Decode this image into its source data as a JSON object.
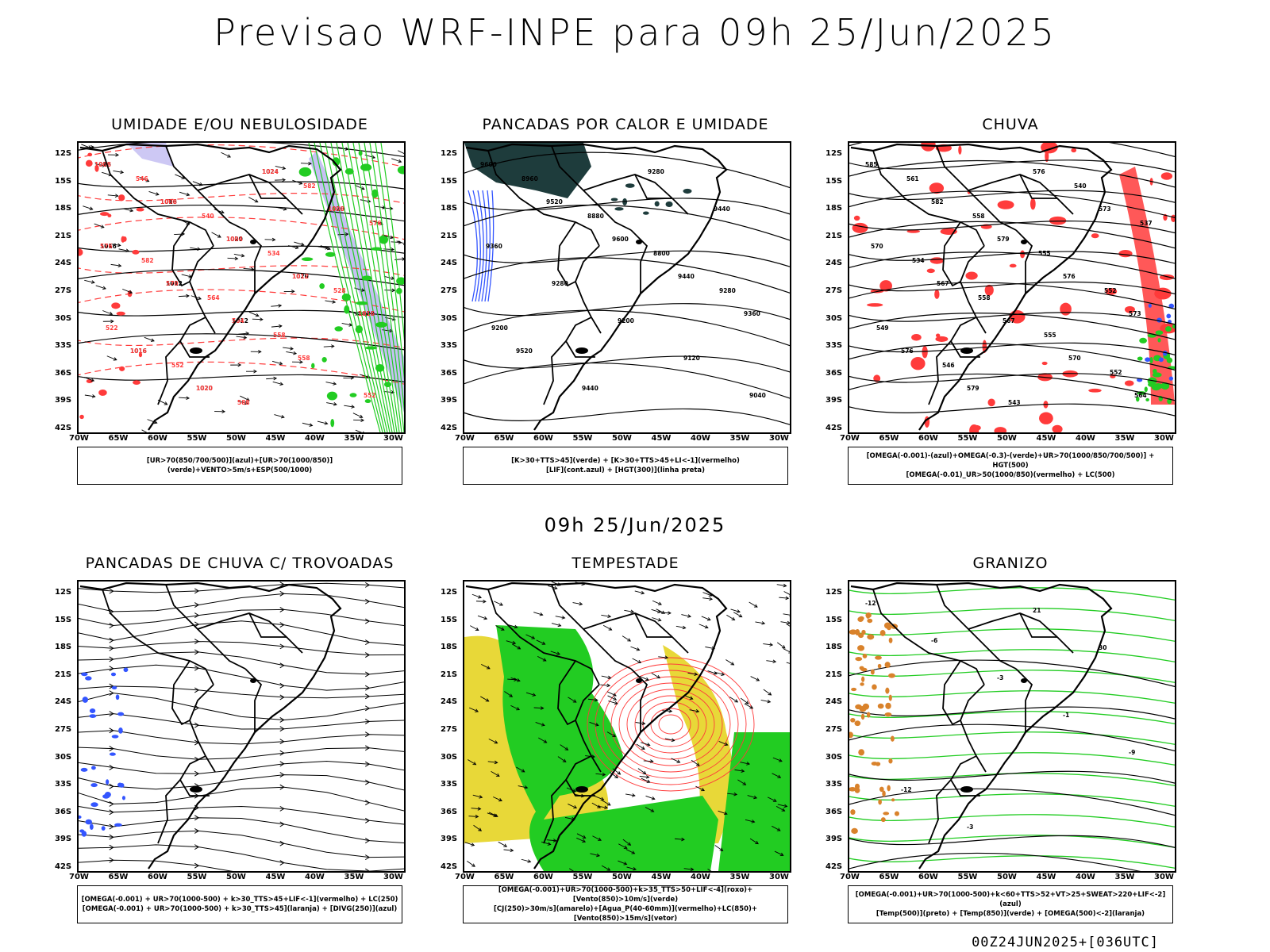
{
  "header": {
    "title": "Previsao WRF-INPE  para 09h 25/Jun/2025"
  },
  "middle": {
    "title": "09h 25/Jun/2025"
  },
  "footer": {
    "run": "00Z24JUN2025+[036UTC]"
  },
  "axes": {
    "lat_ticks": [
      "12S",
      "15S",
      "18S",
      "21S",
      "24S",
      "27S",
      "30S",
      "33S",
      "36S",
      "39S",
      "42S"
    ],
    "lon_ticks": [
      "70W",
      "65W",
      "60W",
      "55W",
      "50W",
      "45W",
      "40W",
      "35W",
      "30W"
    ]
  },
  "panels": [
    {
      "title": "UMIDADE E/OU NEBULOSIDADE",
      "legend": [
        "[UR>70(850/700/500)](azul)+[UR>70(1000/850)](verde)+VENTO>5m/s+ESP(500/1000)"
      ],
      "labels": [
        "1016",
        "1016",
        "1020",
        "1020",
        "1020",
        "1016",
        "1020",
        "1024",
        "1020",
        "1016",
        "1012",
        "1012",
        "1008",
        "1008",
        "1004",
        "1012",
        "1016",
        "1016",
        "1020",
        "1024",
        "1008",
        "576",
        "570",
        "564",
        "558",
        "552",
        "546",
        "540",
        "534",
        "528",
        "522",
        "552",
        "588",
        "582",
        "576",
        "582",
        "564",
        "558"
      ]
    },
    {
      "title": "PANCADAS POR CALOR E UMIDADE",
      "legend": [
        "[K>30+TTS>45](verde) + [K>30+TTS>45+LI<-1](vermelho)",
        "[LIF](cont.azul) + [HGT(300)](linha preta)"
      ],
      "labels": [
        "9600",
        "9520",
        "9600",
        "9440",
        "9360",
        "9520",
        "9440",
        "9280",
        "9440",
        "9360",
        "9280",
        "9200",
        "9120",
        "9040",
        "8960",
        "8880",
        "8800",
        "9280",
        "9200"
      ]
    },
    {
      "title": "CHUVA",
      "legend": [
        "[OMEGA(-0.001)-(azul)+OMEGA(-0.3)-(verde)+UR>70(1000/850/700/500)] + HGT(500)",
        "[OMEGA(-0.01)_UR>50(1000/850)(vermelho) + LC(500)"
      ],
      "labels": [
        "585",
        "582",
        "579",
        "576",
        "573",
        "576",
        "579",
        "576",
        "573",
        "570",
        "567",
        "567",
        "570",
        "564",
        "561",
        "558",
        "555",
        "552",
        "549",
        "546",
        "543",
        "540",
        "537",
        "534",
        "558",
        "555",
        "552"
      ]
    },
    {
      "title": "PANCADAS DE CHUVA C/ TROVOADAS",
      "legend": [
        "[OMEGA(-0.001) + UR>70(1000-500) + k>30_TTS>45+LIF<-1](vermelho) + LC(250)",
        "[OMEGA(-0.001) + UR>70(1000-500) + k>30_TTS>45](laranja) + [DIVG(250)](azul)"
      ],
      "labels": []
    },
    {
      "title": "TEMPESTADE",
      "legend": [
        "[OMEGA(-0.001)+UR>70(1000-500)+k>35_TTS>50+LIF<-4](roxo)+[Vento(850)>10m/s](verde)",
        "[CJ(250)>30m/s](amarelo)+[Agua_P(40-60mm)](vermelho)+LC(850)+[Vento(850)>15m/s](vetor)"
      ],
      "labels": []
    },
    {
      "title": "GRANIZO",
      "legend": [
        "[OMEGA(-0.001)+UR>70(1000-500)+k<60+TTS>52+VT>25+SWEAT>220+LIF<-2](azul)",
        "[Temp(500)](preto) + [Temp(850)](verde) + [OMEGA(500)<-2](laranja)"
      ],
      "labels": [
        "-12",
        "-6",
        "-3",
        "-1",
        "-9",
        "-12",
        "-3",
        "21",
        "30"
      ]
    }
  ],
  "colors": {
    "coast": "#000000",
    "red_contour": "#ff3b3b",
    "green_field": "#22cc22",
    "blue_field": "#3355ff",
    "lavender": "#b8b0f0",
    "yellow_jet": "#e8d838",
    "dark_teal": "#1e3c3c",
    "orange": "#d9822b"
  }
}
